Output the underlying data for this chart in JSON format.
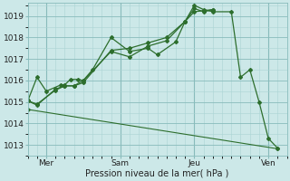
{
  "background_color": "#cce8e8",
  "grid_color_minor": "#aad4d4",
  "grid_color_major": "#88bbbb",
  "line_color": "#2d6e2d",
  "title": "Pression niveau de la mer( hPa )",
  "ylim": [
    1012.5,
    1019.6
  ],
  "yticks": [
    1013,
    1014,
    1015,
    1016,
    1017,
    1018,
    1019
  ],
  "xlim": [
    0,
    14
  ],
  "xtick_positions": [
    1,
    5,
    9,
    13
  ],
  "xtick_labels": [
    "Mer",
    "Sam",
    "Jeu",
    "Ven"
  ],
  "vline_positions": [
    1,
    5,
    9,
    13
  ],
  "series": {
    "diagonal": {
      "x": [
        0,
        13.5
      ],
      "y": [
        1014.65,
        1012.82
      ]
    },
    "line_main": {
      "x": [
        0,
        0.5,
        1.0,
        1.8,
        2.0,
        2.3,
        2.7,
        3.0,
        3.5,
        4.5,
        5.5,
        6.5,
        7.0,
        8.0,
        8.5,
        9.0,
        9.5,
        10.0,
        11.0,
        11.5,
        12.0,
        12.5,
        13.0,
        13.5
      ],
      "y": [
        1015.05,
        1016.15,
        1015.5,
        1015.8,
        1015.8,
        1016.05,
        1016.05,
        1016.0,
        1016.5,
        1018.0,
        1017.35,
        1017.5,
        1017.2,
        1017.8,
        1018.75,
        1019.5,
        1019.3,
        1019.2,
        1019.2,
        1016.15,
        1016.5,
        1015.0,
        1013.3,
        1012.85
      ]
    },
    "line2": {
      "x": [
        0,
        0.5,
        1.5,
        2.0,
        2.5,
        3.0,
        4.5,
        5.5,
        6.5,
        7.5,
        8.5,
        9.0,
        9.5,
        10.0
      ],
      "y": [
        1015.05,
        1014.85,
        1015.6,
        1015.75,
        1015.75,
        1016.0,
        1017.35,
        1017.1,
        1017.6,
        1017.85,
        1018.75,
        1019.35,
        1019.2,
        1019.3
      ]
    },
    "line3": {
      "x": [
        0,
        0.5,
        1.5,
        2.0,
        2.5,
        3.0,
        4.5,
        5.5,
        6.5,
        7.5,
        8.5,
        9.0,
        9.5,
        10.0
      ],
      "y": [
        1015.05,
        1014.9,
        1015.55,
        1015.75,
        1015.75,
        1015.9,
        1017.4,
        1017.5,
        1017.75,
        1018.0,
        1018.75,
        1019.2,
        1019.25,
        1019.3
      ]
    }
  }
}
